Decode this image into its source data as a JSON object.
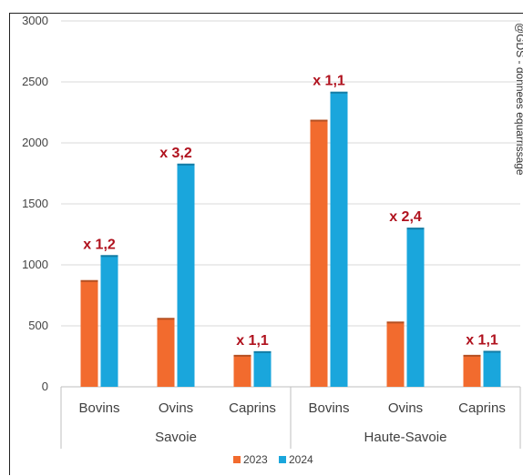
{
  "chart_data": {
    "type": "bar",
    "groups": [
      {
        "name": "Savoie",
        "categories": [
          "Bovins",
          "Ovins",
          "Caprins"
        ]
      },
      {
        "name": "Haute-Savoie",
        "categories": [
          "Bovins",
          "Ovins",
          "Caprins"
        ]
      }
    ],
    "series": [
      {
        "name": "2023",
        "color": "#f26b2e",
        "values": [
          875,
          565,
          262,
          2190,
          535,
          262
        ]
      },
      {
        "name": "2024",
        "color": "#1aa6dc",
        "values": [
          1080,
          1830,
          292,
          2420,
          1305,
          295
        ]
      }
    ],
    "annotations": [
      "x 1,2",
      "x 3,2",
      "x 1,1",
      "x 1,1",
      "x 2,4",
      "x 1,1"
    ],
    "ylim": [
      0,
      3000
    ],
    "yticks": [
      "0",
      "500",
      "1000",
      "1500",
      "2000",
      "2500",
      "3000"
    ],
    "grid": true,
    "legend_position": "bottom",
    "source_text": "@GDS - données équarrissage"
  }
}
